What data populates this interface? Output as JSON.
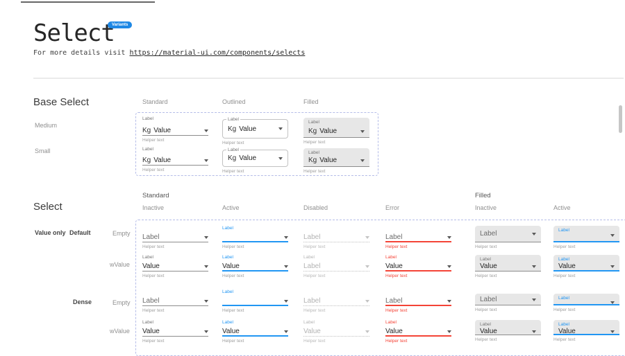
{
  "header": {
    "title": "Select",
    "badge": "Variants",
    "subtitle_prefix": "For more details visit ",
    "subtitle_link": "https://material-ui.com/components/selects"
  },
  "base_select": {
    "heading": "Base Select",
    "column_headers": [
      "Standard",
      "Outlined",
      "Filled"
    ],
    "row_labels": [
      "Medium",
      "Small"
    ],
    "field": {
      "label": "Label",
      "adornment": "Kg",
      "value": "Value",
      "helper": "Helper text"
    }
  },
  "select": {
    "heading": "Select",
    "group_headers": [
      "Standard",
      "Filled"
    ],
    "state_headers": [
      "Inactive",
      "Active",
      "Disabled",
      "Error",
      "Inactive",
      "Active"
    ],
    "row_group_labels": [
      "Value only",
      "Default",
      "Dense"
    ],
    "row_labels": [
      "Empty",
      "wValue",
      "Empty",
      "wValue"
    ],
    "cells": [
      {
        "label": "",
        "text": "Label",
        "helper": "Helper text"
      },
      {
        "label": "Label",
        "text": "",
        "helper": "Helper text"
      },
      {
        "label": "",
        "text": "Label",
        "helper": "Helper text"
      },
      {
        "label": "",
        "text": "Label",
        "helper": "Helper text"
      },
      {
        "label": "",
        "text": "Label",
        "helper": "Helper text"
      },
      {
        "label": "Label",
        "text": "",
        "helper": "Helper text"
      },
      {
        "label": "Label",
        "text": "Value",
        "helper": "Helper text"
      },
      {
        "label": "Label",
        "text": "Value",
        "helper": "Helper text"
      },
      {
        "label": "Label",
        "text": "Label",
        "helper": "Helper text"
      },
      {
        "label": "Label",
        "text": "Value",
        "helper": "Helper text"
      },
      {
        "label": "Label",
        "text": "Value",
        "helper": "Helper text"
      },
      {
        "label": "Label",
        "text": "Value",
        "helper": "Helper text"
      },
      {
        "label": "",
        "text": "Label",
        "helper": "Helper text"
      },
      {
        "label": "Label",
        "text": "",
        "helper": "Helper text"
      },
      {
        "label": "",
        "text": "Label",
        "helper": "Helper text"
      },
      {
        "label": "",
        "text": "Label",
        "helper": "Helper text"
      },
      {
        "label": "",
        "text": "Label",
        "helper": "Helper text"
      },
      {
        "label": "Label",
        "text": "",
        "helper": "Helper text"
      },
      {
        "label": "Label",
        "text": "Value",
        "helper": "Helper text"
      },
      {
        "label": "Label",
        "text": "Value",
        "helper": "Helper text"
      },
      {
        "label": "Label",
        "text": "Value",
        "helper": "Helper text"
      },
      {
        "label": "Label",
        "text": "Value",
        "helper": "Helper text"
      },
      {
        "label": "Label",
        "text": "Value",
        "helper": "Helper text"
      },
      {
        "label": "Label",
        "text": "Value",
        "helper": "Helper text"
      }
    ]
  },
  "colors": {
    "accent": "#2196f3",
    "error": "#f44336",
    "badge": "#1e88e5",
    "filled_bg": "#e7e7e7",
    "dashed_border": "#b4bce8"
  }
}
